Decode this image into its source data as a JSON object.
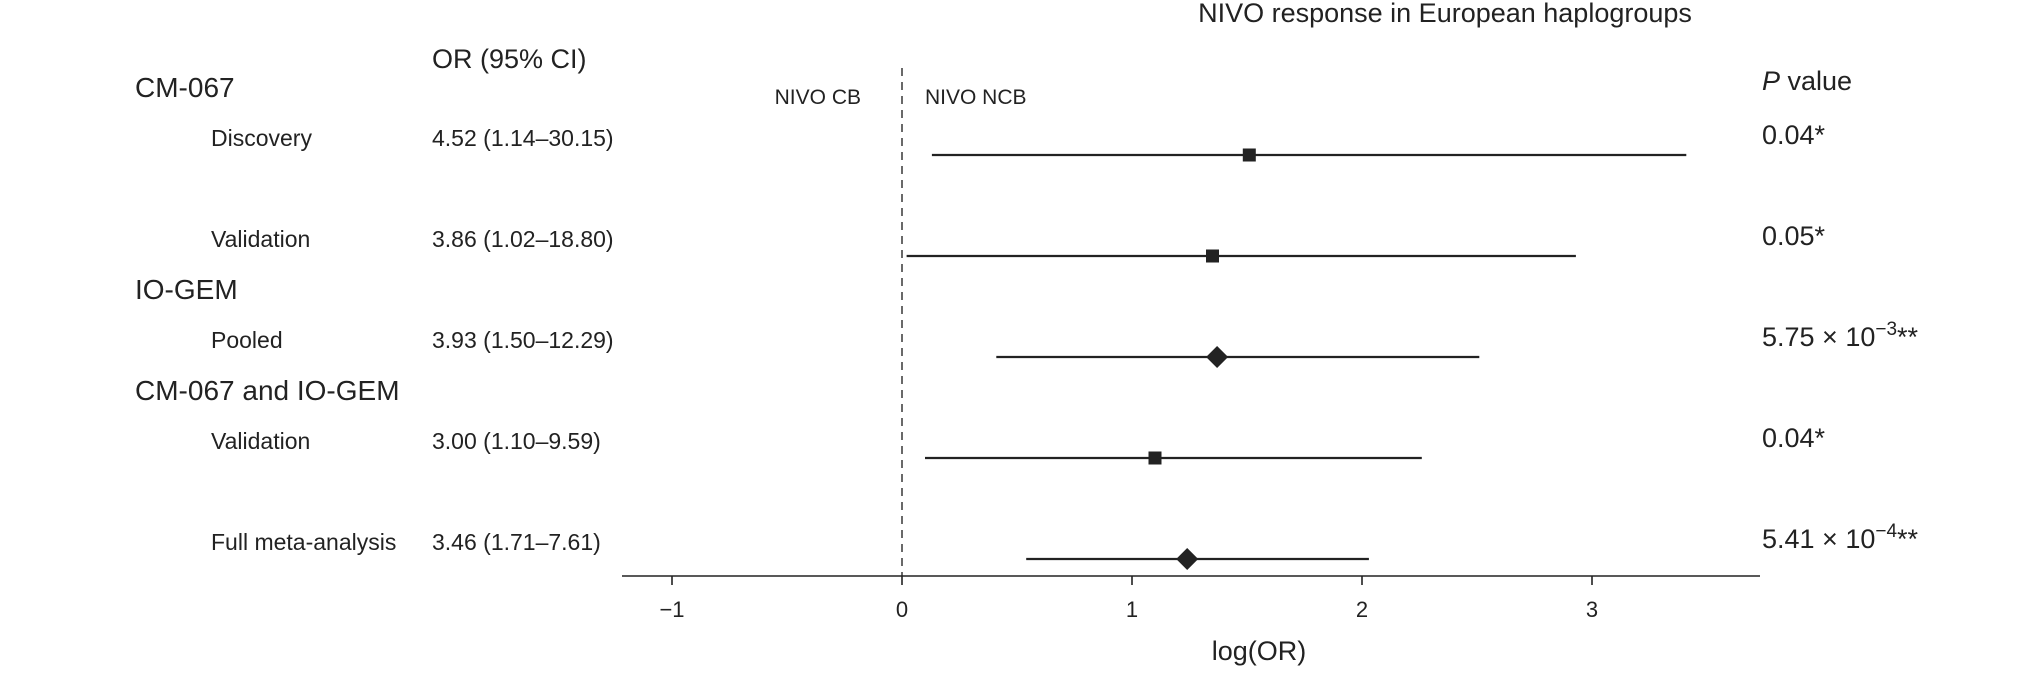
{
  "chart_data": {
    "type": "forest",
    "title": "NIVO response in European haplogroups",
    "xlabel": "log(OR)",
    "xlim": [
      -1.25,
      3.7
    ],
    "x_ticks": [
      -1,
      0,
      1,
      2,
      3
    ],
    "x_tick_labels": [
      "−1",
      "0",
      "1",
      "2",
      "3"
    ],
    "reference_line": 0,
    "annotations": {
      "left": "NIVO CB",
      "right": "NIVO NCB"
    },
    "column_headers": {
      "or_ci": "OR (95% CI)",
      "p_prefix": "P",
      "p_suffix": " value"
    },
    "groups": [
      {
        "label": "CM-067",
        "row": 0
      },
      {
        "label": "IO-GEM",
        "row": 4
      },
      {
        "label": "CM-067 and IO-GEM",
        "row": 6
      }
    ],
    "rows": [
      {
        "label": "Discovery",
        "or_ci": "4.52 (1.14–30.15)",
        "p_main": "0.04*",
        "p_exp": "",
        "p_tail": "",
        "marker": "square",
        "est": 1.51,
        "lo": 0.13,
        "hi": 3.41,
        "row": 0.5
      },
      {
        "label": "Validation",
        "or_ci": "3.86 (1.02–18.80)",
        "p_main": "0.05*",
        "p_exp": "",
        "p_tail": "",
        "marker": "square",
        "est": 1.35,
        "lo": 0.02,
        "hi": 2.93,
        "row": 1.5
      },
      {
        "label": "Pooled",
        "or_ci": "3.93 (1.50–12.29)",
        "p_main": "5.75 × 10",
        "p_exp": "−3",
        "p_tail": "**",
        "marker": "diamond",
        "est": 1.37,
        "lo": 0.41,
        "hi": 2.51,
        "row": 2.5
      },
      {
        "label": "Validation",
        "or_ci": "3.00 (1.10–9.59)",
        "p_main": "0.04*",
        "p_exp": "",
        "p_tail": "",
        "marker": "square",
        "est": 1.1,
        "lo": 0.1,
        "hi": 2.26,
        "row": 3.5
      },
      {
        "label": "Full meta-analysis",
        "or_ci": "3.46 (1.71–7.61)",
        "p_main": "5.41 × 10",
        "p_exp": "−4",
        "p_tail": "**",
        "marker": "diamond",
        "est": 1.24,
        "lo": 0.54,
        "hi": 2.03,
        "row": 4.5
      }
    ]
  }
}
